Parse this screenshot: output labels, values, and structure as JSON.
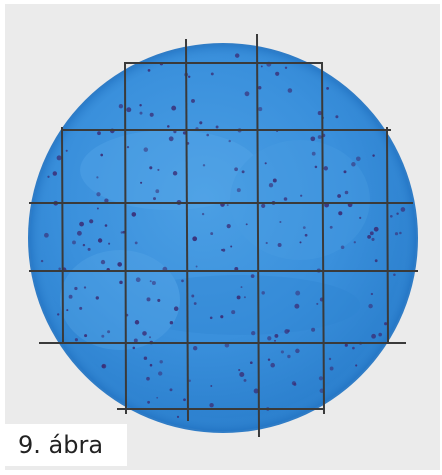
{
  "image": {
    "subject": "petri-dish-with-counting-grid",
    "colors": {
      "background": "#ebebeb",
      "dish_edge": "#2f7cc6",
      "medium": "#3d92dc",
      "colony": "#3a2f78",
      "grid_line": "#3a3a3a"
    }
  },
  "caption": {
    "text": "9. ábra"
  }
}
